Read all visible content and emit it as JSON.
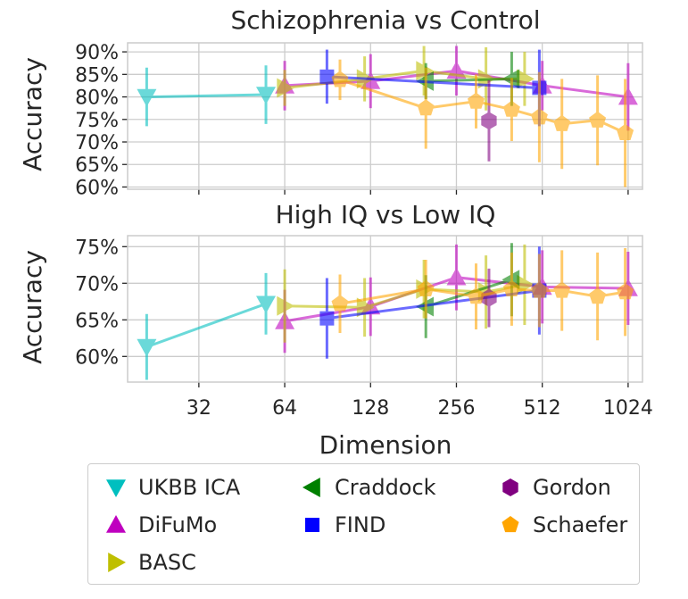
{
  "chart_data": [
    {
      "type": "line",
      "title": "Schizophrenia vs Control",
      "ylabel": "Accuracy",
      "xlabel": "",
      "xscale": "log2",
      "xlim": [
        18,
        1150
      ],
      "ylim": [
        59.5,
        92
      ],
      "yticks": [
        "60%",
        "65%",
        "70%",
        "75%",
        "80%",
        "85%",
        "90%"
      ],
      "ytick_values": [
        60,
        65,
        70,
        75,
        80,
        85,
        90
      ],
      "grid": true,
      "series": [
        {
          "name": "UKBB ICA",
          "color": "#00bfbf",
          "marker": "tri_down",
          "x": [
            21,
            55
          ],
          "y": [
            80,
            80.5
          ],
          "err": [
            6.5,
            6.5
          ]
        },
        {
          "name": "DiFuMo",
          "color": "#bf00bf",
          "marker": "tri_up",
          "x": [
            64,
            128,
            256,
            512,
            1024
          ],
          "y": [
            82.5,
            83.5,
            85.8,
            82.5,
            80
          ],
          "err": [
            5.5,
            6,
            5.5,
            5.5,
            7.5
          ]
        },
        {
          "name": "BASC",
          "color": "#bfbf00",
          "marker": "tri_right",
          "x": [
            64,
            122,
            197,
            325,
            444
          ],
          "y": [
            82,
            84,
            85.8,
            84,
            84
          ],
          "err": [
            4,
            5,
            5.5,
            7,
            6
          ]
        },
        {
          "name": "Craddock",
          "color": "#008000",
          "marker": "tri_left",
          "x": [
            200,
            400
          ],
          "y": [
            83.5,
            84
          ],
          "err": [
            4,
            6
          ]
        },
        {
          "name": "FIND",
          "color": "#0000ff",
          "marker": "square",
          "x": [
            90,
            500
          ],
          "y": [
            84.5,
            82
          ],
          "err": [
            6,
            8.5
          ]
        },
        {
          "name": "Gordon",
          "color": "#800080",
          "marker": "hexagon",
          "x": [
            333
          ],
          "y": [
            74.7
          ],
          "err": [
            9
          ]
        },
        {
          "name": "Schaefer",
          "color": "#ffa500",
          "marker": "pentagon",
          "x": [
            100,
            200,
            300,
            400,
            500,
            600,
            800,
            1000
          ],
          "y": [
            83.8,
            77.5,
            79,
            77.2,
            75.5,
            74,
            74.8,
            72
          ],
          "err": [
            4.5,
            9,
            6,
            7,
            10,
            10,
            10,
            12
          ]
        }
      ]
    },
    {
      "type": "line",
      "title": "High IQ vs Low IQ",
      "ylabel": "Accuracy",
      "xlabel": "Dimension",
      "xscale": "log2",
      "xlim": [
        18,
        1150
      ],
      "ylim": [
        56.5,
        76.5
      ],
      "yticks": [
        "60%",
        "65%",
        "70%",
        "75%"
      ],
      "ytick_values": [
        60,
        65,
        70,
        75
      ],
      "xticks": [
        "32",
        "64",
        "128",
        "256",
        "512",
        "1024"
      ],
      "xtick_values": [
        32,
        64,
        128,
        256,
        512,
        1024
      ],
      "grid": true,
      "series": [
        {
          "name": "UKBB ICA",
          "color": "#00bfbf",
          "marker": "tri_down",
          "x": [
            21,
            55
          ],
          "y": [
            61.3,
            67.2
          ],
          "err": [
            4.5,
            4.2
          ]
        },
        {
          "name": "DiFuMo",
          "color": "#bf00bf",
          "marker": "tri_up",
          "x": [
            64,
            128,
            256,
            512,
            1024
          ],
          "y": [
            64.8,
            66.8,
            70.8,
            69.5,
            69.3
          ],
          "err": [
            4.3,
            4,
            4.5,
            5,
            5
          ]
        },
        {
          "name": "BASC",
          "color": "#bfbf00",
          "marker": "tri_right",
          "x": [
            64,
            122,
            197,
            325,
            444
          ],
          "y": [
            66.9,
            66.7,
            69.2,
            68.8,
            69.8
          ],
          "err": [
            5,
            4,
            4,
            5,
            5.5
          ]
        },
        {
          "name": "Craddock",
          "color": "#008000",
          "marker": "tri_left",
          "x": [
            200,
            400
          ],
          "y": [
            66.8,
            70.5
          ],
          "err": [
            4.3,
            5
          ]
        },
        {
          "name": "FIND",
          "color": "#0000ff",
          "marker": "square",
          "x": [
            90,
            500
          ],
          "y": [
            65.2,
            69
          ],
          "err": [
            5.5,
            6
          ]
        },
        {
          "name": "Gordon",
          "color": "#800080",
          "marker": "hexagon",
          "x": [
            333
          ],
          "y": [
            68
          ],
          "err": [
            4
          ]
        },
        {
          "name": "Schaefer",
          "color": "#ffa500",
          "marker": "pentagon",
          "x": [
            100,
            200,
            300,
            400,
            500,
            600,
            800,
            1000
          ],
          "y": [
            67.2,
            69.2,
            68.2,
            69.2,
            69,
            69,
            68.2,
            68.8
          ],
          "err": [
            4,
            4,
            4.5,
            5,
            5,
            5.5,
            6,
            6
          ]
        }
      ]
    }
  ],
  "legend": [
    {
      "label": "UKBB ICA",
      "marker": "tri_down",
      "color": "#00bfbf"
    },
    {
      "label": "Craddock",
      "marker": "tri_left",
      "color": "#008000"
    },
    {
      "label": "Gordon",
      "marker": "hexagon",
      "color": "#800080"
    },
    {
      "label": "DiFuMo",
      "marker": "tri_up",
      "color": "#bf00bf"
    },
    {
      "label": "FIND",
      "marker": "square",
      "color": "#0000ff"
    },
    {
      "label": "Schaefer",
      "marker": "pentagon",
      "color": "#ffa500"
    },
    {
      "label": "BASC",
      "marker": "tri_right",
      "color": "#bfbf00"
    }
  ]
}
